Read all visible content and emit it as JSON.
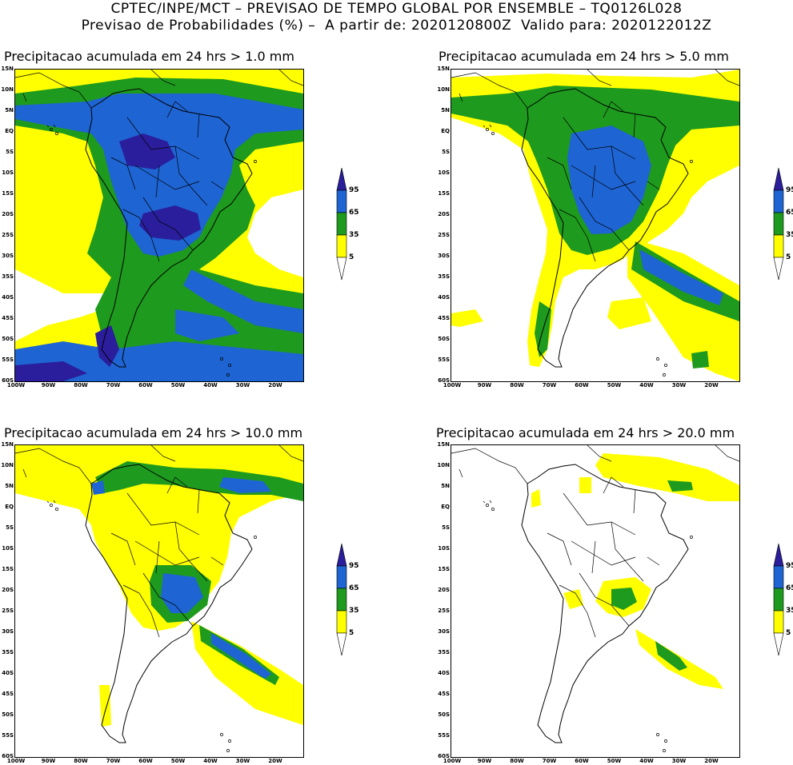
{
  "header": {
    "line1": "CPTEC/INPE/MCT – PREVISAO DE TEMPO GLOBAL POR ENSEMBLE – TQ0126L028",
    "line2": "Previsao de Probabilidades (%) –  A partir de: 2020120800Z  Valido para: 2020122012Z"
  },
  "colors": {
    "c5": "#ffff00",
    "c35": "#1e9a1e",
    "c65": "#1e64d2",
    "c95": "#2a1e9c",
    "land_line": "#000000"
  },
  "colorbar": {
    "levels": [
      "95",
      "65",
      "35",
      "5"
    ],
    "colors_top_to_bottom": [
      "#2a1e9c",
      "#1e64d2",
      "#1e9a1e",
      "#ffff00",
      "#ffffff"
    ]
  },
  "axes": {
    "lat_labels": [
      "15N",
      "10N",
      "5N",
      "EQ",
      "5S",
      "10S",
      "15S",
      "20S",
      "25S",
      "30S",
      "35S",
      "40S",
      "45S",
      "50S",
      "55S",
      "60S"
    ],
    "lon_labels": [
      "100W",
      "90W",
      "80W",
      "70W",
      "60W",
      "50W",
      "40W",
      "30W",
      "20W"
    ]
  },
  "panels": [
    {
      "id": "p1",
      "title": "Precipitacao acumulada em 24 hrs > 1.0 mm"
    },
    {
      "id": "p2",
      "title": "Precipitacao acumulada em 24 hrs > 5.0 mm"
    },
    {
      "id": "p3",
      "title": "Precipitacao acumulada em 24 hrs > 10.0 mm"
    },
    {
      "id": "p4",
      "title": "Precipitacao acumulada em 24 hrs > 20.0 mm"
    }
  ]
}
